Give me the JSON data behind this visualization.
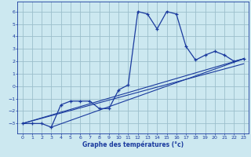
{
  "xlabel": "Graphe des températures (°c)",
  "xlim": [
    -0.5,
    23.5
  ],
  "ylim": [
    -3.8,
    6.8
  ],
  "xticks": [
    0,
    1,
    2,
    3,
    4,
    5,
    6,
    7,
    8,
    9,
    10,
    11,
    12,
    13,
    14,
    15,
    16,
    17,
    18,
    19,
    20,
    21,
    22,
    23
  ],
  "yticks": [
    -3,
    -2,
    -1,
    0,
    1,
    2,
    3,
    4,
    5,
    6
  ],
  "bg_color": "#cce8f0",
  "line_color": "#1a3a9e",
  "grid_color": "#9bbfcc",
  "curve1_x": [
    0,
    1,
    2,
    3,
    4,
    5,
    6,
    7,
    8,
    9,
    10,
    11,
    12,
    13,
    14,
    15,
    16,
    17,
    18,
    19,
    20,
    21,
    22,
    23
  ],
  "curve1_y": [
    -3.0,
    -3.0,
    -3.0,
    -3.3,
    -1.5,
    -1.2,
    -1.2,
    -1.2,
    -1.8,
    -1.8,
    -0.3,
    0.1,
    6.0,
    5.8,
    4.6,
    6.0,
    5.8,
    3.2,
    2.1,
    2.5,
    2.8,
    2.5,
    2.0,
    2.2
  ],
  "line1_x": [
    0,
    23
  ],
  "line1_y": [
    -3.0,
    2.2
  ],
  "line2_x": [
    0,
    23
  ],
  "line2_y": [
    -3.0,
    1.8
  ],
  "line3_x": [
    3,
    23
  ],
  "line3_y": [
    -3.3,
    2.2
  ]
}
